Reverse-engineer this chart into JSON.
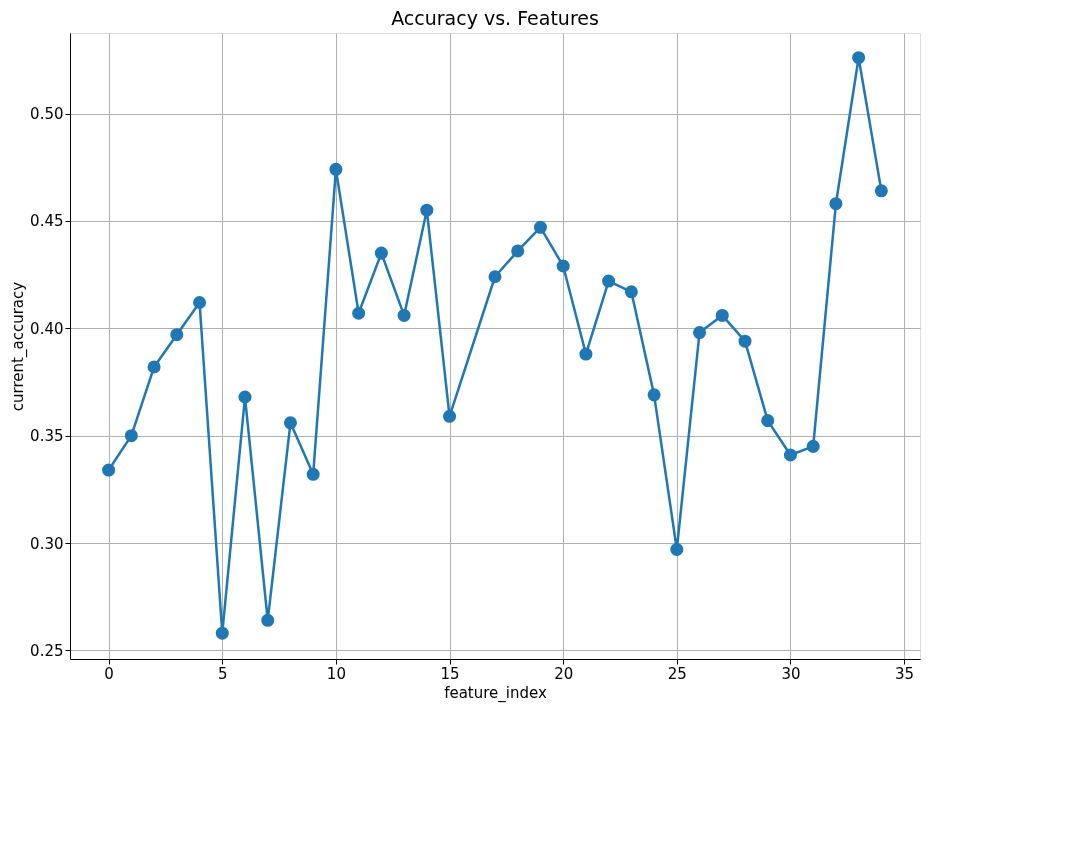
{
  "chart_data": {
    "type": "line",
    "title": "Accuracy vs. Features",
    "xlabel": "feature_index",
    "ylabel": "current_accuracy",
    "x": [
      0,
      1,
      2,
      3,
      4,
      5,
      6,
      7,
      8,
      9,
      10,
      11,
      12,
      13,
      14,
      15,
      17,
      18,
      19,
      20,
      21,
      22,
      23,
      24,
      25,
      26,
      27,
      28,
      29,
      30,
      31,
      32,
      33,
      34
    ],
    "series": [
      {
        "color": "#1f77b4",
        "values": [
          0.334,
          0.35,
          0.382,
          0.397,
          0.412,
          0.258,
          0.368,
          0.264,
          0.356,
          0.332,
          0.474,
          0.407,
          0.435,
          0.406,
          0.455,
          0.359,
          0.424,
          0.436,
          0.447,
          0.429,
          0.388,
          0.422,
          0.417,
          0.369,
          0.297,
          0.398,
          0.406,
          0.394,
          0.357,
          0.341,
          0.345,
          0.458,
          0.526,
          0.464
        ]
      }
    ],
    "xlim": [
      -1.7,
      35.7
    ],
    "xticks": [
      0,
      5,
      10,
      15,
      20,
      25,
      30,
      35
    ],
    "ylim": [
      0.246,
      0.5375
    ],
    "yticks": [
      {
        "value": 0.25,
        "label": "0.25"
      },
      {
        "value": 0.3,
        "label": "0.30"
      },
      {
        "value": 0.35,
        "label": "0.35"
      },
      {
        "value": 0.4,
        "label": "0.40"
      },
      {
        "value": 0.45,
        "label": "0.45"
      },
      {
        "value": 0.5,
        "label": "0.50"
      }
    ],
    "grid": true,
    "marker": "circle",
    "line_style": "solid"
  }
}
